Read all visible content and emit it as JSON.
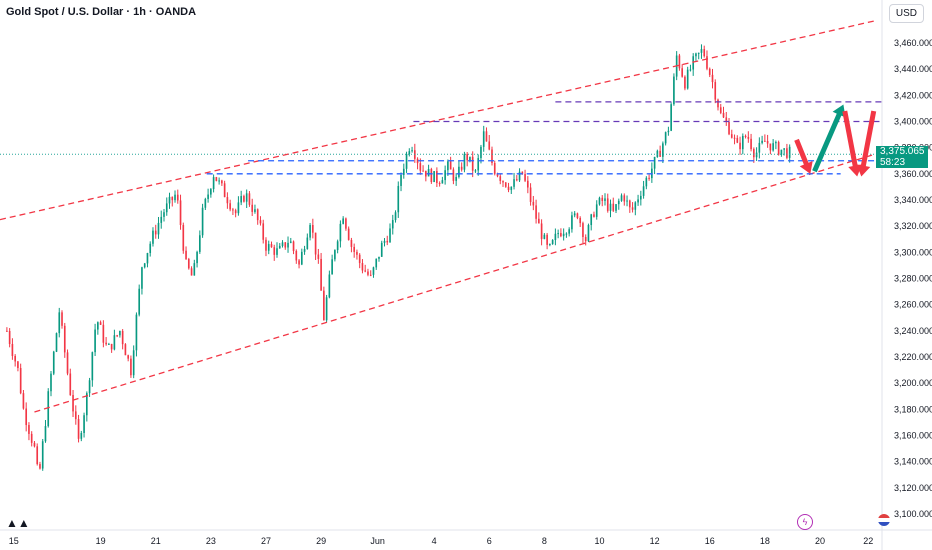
{
  "header": {
    "symbol": "Gold Spot / U.S. Dollar · 1h · OANDA"
  },
  "currency": "USD",
  "price_tag": {
    "price": "3,375.065",
    "countdown": "58:23"
  },
  "colors": {
    "up": "#089981",
    "down": "#f23645",
    "trend_line": "#f23645",
    "level_blue": "#2962ff",
    "level_purple": "#673ab7",
    "current_dotted": "#26a69a"
  },
  "icons": [
    "flash-icon",
    "flag-icon"
  ],
  "chart_data": {
    "type": "candlestick",
    "title": "Gold Spot / U.S. Dollar · 1h · OANDA",
    "ylim": [
      3090,
      3480
    ],
    "y_ticks": [
      "3,460.000",
      "3,440.000",
      "3,420.000",
      "3,400.000",
      "3,380.000",
      "3,360.000",
      "3,340.000",
      "3,320.000",
      "3,300.000",
      "3,280.000",
      "3,260.000",
      "3,240.000",
      "3,220.000",
      "3,200.000",
      "3,180.000",
      "3,160.000",
      "3,140.000",
      "3,120.000",
      "3,100.000"
    ],
    "y_tick_values": [
      3460,
      3440,
      3420,
      3400,
      3380,
      3360,
      3340,
      3320,
      3300,
      3280,
      3260,
      3240,
      3220,
      3200,
      3180,
      3160,
      3140,
      3120,
      3100
    ],
    "x_ticks": [
      "15",
      "19",
      "21",
      "23",
      "27",
      "29",
      "Jun",
      "4",
      "6",
      "8",
      "10",
      "12",
      "16",
      "18",
      "20",
      "22"
    ],
    "x_tick_positions": [
      0.5,
      6.8,
      10.8,
      14.8,
      18.8,
      22.8,
      26.9,
      31,
      35,
      39,
      43,
      47,
      51,
      55,
      59,
      62.5
    ],
    "x_range": [
      -0.5,
      63.5
    ],
    "path_points": [
      [
        0,
        3240
      ],
      [
        0.8,
        3210
      ],
      [
        1.2,
        3180
      ],
      [
        2,
        3150
      ],
      [
        2.3,
        3125
      ],
      [
        3,
        3190
      ],
      [
        3.8,
        3255
      ],
      [
        4.5,
        3200
      ],
      [
        5.2,
        3155
      ],
      [
        5.8,
        3190
      ],
      [
        6.5,
        3250
      ],
      [
        7.3,
        3225
      ],
      [
        8.2,
        3240
      ],
      [
        9,
        3210
      ],
      [
        9.8,
        3290
      ],
      [
        10.5,
        3310
      ],
      [
        11.3,
        3330
      ],
      [
        12.3,
        3345
      ],
      [
        13,
        3290
      ],
      [
        13.5,
        3280
      ],
      [
        14.2,
        3330
      ],
      [
        15,
        3360
      ],
      [
        15.8,
        3345
      ],
      [
        16.6,
        3330
      ],
      [
        17.3,
        3345
      ],
      [
        18,
        3330
      ],
      [
        18.8,
        3305
      ],
      [
        19.7,
        3300
      ],
      [
        20.5,
        3310
      ],
      [
        21.2,
        3290
      ],
      [
        22,
        3325
      ],
      [
        22.6,
        3290
      ],
      [
        23,
        3250
      ],
      [
        23.7,
        3300
      ],
      [
        24.4,
        3330
      ],
      [
        25,
        3305
      ],
      [
        25.7,
        3290
      ],
      [
        26.4,
        3280
      ],
      [
        27.2,
        3305
      ],
      [
        28,
        3320
      ],
      [
        28.6,
        3360
      ],
      [
        29.3,
        3385
      ],
      [
        30,
        3365
      ],
      [
        30.6,
        3360
      ],
      [
        31.3,
        3355
      ],
      [
        32,
        3365
      ],
      [
        32.6,
        3355
      ],
      [
        33.3,
        3375
      ],
      [
        34,
        3360
      ],
      [
        34.6,
        3390
      ],
      [
        35.3,
        3365
      ],
      [
        36,
        3355
      ],
      [
        36.6,
        3350
      ],
      [
        37.4,
        3360
      ],
      [
        38,
        3340
      ],
      [
        38.6,
        3320
      ],
      [
        39.3,
        3300
      ],
      [
        40,
        3315
      ],
      [
        40.7,
        3320
      ],
      [
        41.4,
        3330
      ],
      [
        42,
        3310
      ],
      [
        42.7,
        3335
      ],
      [
        43.3,
        3340
      ],
      [
        44,
        3330
      ],
      [
        44.7,
        3345
      ],
      [
        45.3,
        3330
      ],
      [
        45.9,
        3345
      ],
      [
        46.6,
        3360
      ],
      [
        47.3,
        3375
      ],
      [
        48,
        3395
      ],
      [
        48.6,
        3450
      ],
      [
        49.2,
        3430
      ],
      [
        49.8,
        3445
      ],
      [
        50.5,
        3455
      ],
      [
        51.2,
        3430
      ],
      [
        51.8,
        3405
      ],
      [
        52.4,
        3395
      ],
      [
        53,
        3380
      ],
      [
        53.7,
        3390
      ],
      [
        54.3,
        3375
      ],
      [
        55,
        3385
      ],
      [
        55.7,
        3380
      ],
      [
        56.3,
        3378
      ],
      [
        57,
        3375
      ]
    ],
    "channel_upper": [
      [
        -0.5,
        3325
      ],
      [
        63,
        3477
      ]
    ],
    "channel_lower": [
      [
        2,
        3178
      ],
      [
        63,
        3375
      ]
    ],
    "levels": [
      {
        "name": "blue-level-upper",
        "y": 3370,
        "x_start": 17.5,
        "x_end": 63.5,
        "color": "#2962ff"
      },
      {
        "name": "blue-level-lower",
        "y": 3360,
        "x_start": 14.5,
        "x_end": 60.5,
        "color": "#2962ff"
      },
      {
        "name": "purple-level-upper",
        "y": 3415,
        "x_start": 39.8,
        "x_end": 63.5,
        "color": "#673ab7"
      },
      {
        "name": "purple-level-lower",
        "y": 3400,
        "x_start": 29.5,
        "x_end": 63.5,
        "color": "#673ab7"
      }
    ],
    "current_price": 3375,
    "arrows": [
      {
        "name": "down-arrow-1",
        "from": [
          57.3,
          3386
        ],
        "to": [
          58.3,
          3360
        ],
        "color": "#f23645"
      },
      {
        "name": "up-arrow",
        "from": [
          58.6,
          3362
        ],
        "to": [
          60.7,
          3413
        ],
        "color": "#089981"
      },
      {
        "name": "down-arrow-2",
        "from": [
          60.8,
          3408
        ],
        "to": [
          61.7,
          3358
        ],
        "color": "#f23645"
      },
      {
        "name": "down-arrow-3",
        "from": [
          62.9,
          3408
        ],
        "to": [
          62.0,
          3358
        ],
        "color": "#f23645"
      }
    ]
  }
}
